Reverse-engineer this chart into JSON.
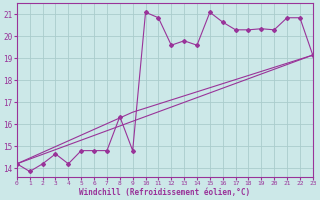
{
  "xlabel": "Windchill (Refroidissement éolien,°C)",
  "bg_color": "#cce8e8",
  "grid_color": "#aacccc",
  "line_color": "#993399",
  "x_ticks": [
    0,
    1,
    2,
    3,
    4,
    5,
    6,
    7,
    8,
    9,
    10,
    11,
    12,
    13,
    14,
    15,
    16,
    17,
    18,
    19,
    20,
    21,
    22,
    23
  ],
  "y_ticks": [
    14,
    15,
    16,
    17,
    18,
    19,
    20,
    21
  ],
  "ylim": [
    13.6,
    21.5
  ],
  "xlim": [
    0,
    23
  ],
  "series1_x": [
    0,
    1,
    2,
    3,
    4,
    5,
    6,
    7,
    8,
    9,
    10,
    11,
    12,
    13,
    14,
    15,
    16,
    17,
    18,
    19,
    20,
    21,
    22,
    23
  ],
  "series1_y": [
    14.2,
    13.85,
    14.2,
    14.65,
    14.2,
    14.8,
    14.8,
    14.8,
    16.35,
    14.8,
    21.1,
    20.85,
    19.6,
    19.8,
    19.6,
    21.1,
    20.65,
    20.3,
    20.3,
    20.35,
    20.3,
    20.85,
    20.85,
    19.15
  ],
  "line2_x": [
    0,
    23
  ],
  "line2_y": [
    14.2,
    19.15
  ],
  "line3_x": [
    0,
    9,
    23
  ],
  "line3_y": [
    14.2,
    16.55,
    19.15
  ]
}
